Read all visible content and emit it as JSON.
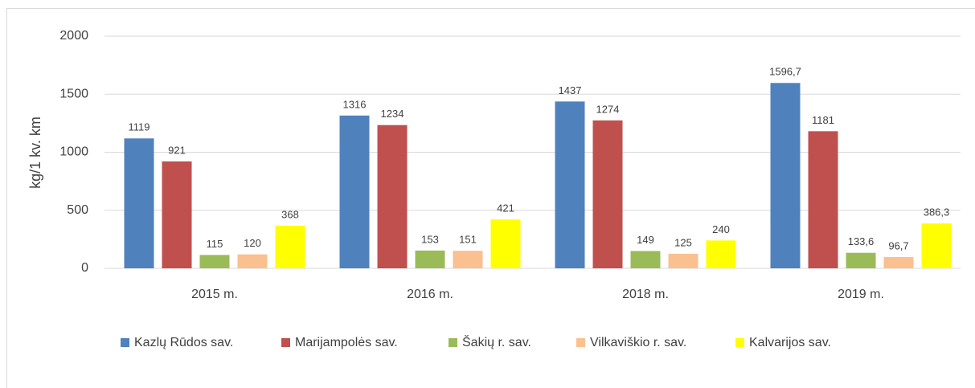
{
  "chart_data": {
    "type": "bar",
    "y_label": "kg/1 kv. km",
    "categories": [
      "2015 m.",
      "2016 m.",
      "2018 m.",
      "2019 m."
    ],
    "series": [
      {
        "name": "Kazlų Rūdos sav.",
        "color": "#4f81bd",
        "values": [
          1119,
          1316,
          1437,
          1596.7
        ],
        "value_labels": [
          "1119",
          "1316",
          "1437",
          "1596,7"
        ]
      },
      {
        "name": "Marijampolės sav.",
        "color": "#c0504d",
        "values": [
          921,
          1234,
          1274,
          1181
        ],
        "value_labels": [
          "921",
          "1234",
          "1274",
          "1181"
        ]
      },
      {
        "name": "Šakių r. sav.",
        "color": "#9bbb59",
        "values": [
          115,
          153,
          149,
          133.6
        ],
        "value_labels": [
          "115",
          "153",
          "149",
          "133,6"
        ]
      },
      {
        "name": "Vilkaviškio r. sav.",
        "color": "#fac090",
        "values": [
          120,
          151,
          125,
          96.7
        ],
        "value_labels": [
          "120",
          "151",
          "125",
          "96,7"
        ]
      },
      {
        "name": "Kalvarijos sav.",
        "color": "#ffff00",
        "values": [
          368,
          421,
          240,
          386.3
        ],
        "value_labels": [
          "368",
          "421",
          "240",
          "386,3"
        ]
      }
    ],
    "ylim": [
      0,
      2000
    ],
    "yticks": [
      0,
      500,
      1000,
      1500,
      2000
    ],
    "grid": true,
    "legend": "bottom"
  }
}
